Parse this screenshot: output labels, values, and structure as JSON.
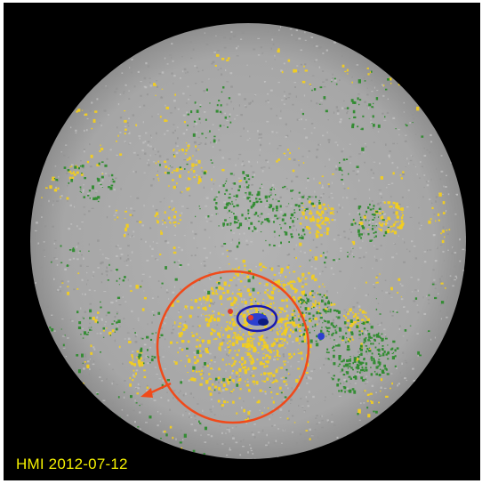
{
  "image": {
    "subject": "solar-disk-magnetogram",
    "caption": "HMI 2012-07-12"
  },
  "palette": {
    "background": "#000000",
    "disk": "#a9a9a9",
    "positive_flux": "#f2cd1f",
    "negative_flux": "#2e8b2e",
    "strong_positive": "#e23b2b",
    "strong_negative": "#1a2fb8",
    "highlight_ellipse": "#1a1ab0",
    "region_circle": "#f04a1a",
    "caption_text": "#f4f000"
  },
  "icons": {
    "arrow": "arrow-down-left-icon"
  }
}
